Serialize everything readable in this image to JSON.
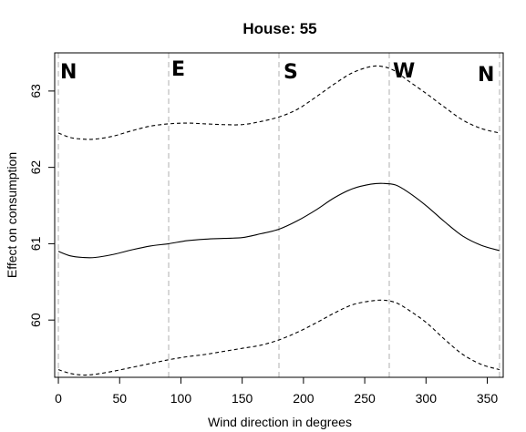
{
  "chart_data": {
    "type": "line",
    "title": "House:  55",
    "xlabel": "Wind direction in degrees",
    "ylabel": "Effect on consumption",
    "xlim": [
      -3,
      363
    ],
    "ylim": [
      59.25,
      63.5
    ],
    "x_ticks": [
      0,
      50,
      100,
      150,
      200,
      250,
      300,
      350
    ],
    "y_ticks": [
      60,
      61,
      62,
      63
    ],
    "grid": "vertical dashed lines at 0, 90, 180, 270, 360",
    "direction_markers": [
      {
        "label": "N",
        "x": 0
      },
      {
        "label": "E",
        "x": 90
      },
      {
        "label": "S",
        "x": 180
      },
      {
        "label": "W",
        "x": 270
      },
      {
        "label": "N",
        "x": 360
      }
    ],
    "series": [
      {
        "style": "dashed",
        "x": [
          0,
          10,
          20,
          30,
          45,
          60,
          75,
          90,
          105,
          120,
          135,
          150,
          165,
          180,
          195,
          210,
          225,
          240,
          255,
          265,
          275,
          285,
          300,
          315,
          330,
          345,
          360
        ],
        "y": [
          62.45,
          62.39,
          62.37,
          62.37,
          62.41,
          62.48,
          62.54,
          62.57,
          62.58,
          62.57,
          62.56,
          62.56,
          62.6,
          62.66,
          62.76,
          62.92,
          63.09,
          63.24,
          63.32,
          63.32,
          63.26,
          63.14,
          62.97,
          62.79,
          62.62,
          62.51,
          62.45
        ]
      },
      {
        "style": "solid",
        "x": [
          0,
          10,
          20,
          30,
          45,
          60,
          75,
          90,
          105,
          120,
          135,
          150,
          165,
          180,
          195,
          210,
          225,
          240,
          255,
          265,
          275,
          285,
          300,
          315,
          330,
          345,
          360
        ],
        "y": [
          60.9,
          60.84,
          60.82,
          60.82,
          60.86,
          60.92,
          60.97,
          61.0,
          61.04,
          61.06,
          61.07,
          61.08,
          61.13,
          61.19,
          61.3,
          61.44,
          61.6,
          61.72,
          61.78,
          61.79,
          61.77,
          61.68,
          61.5,
          61.29,
          61.1,
          60.98,
          60.91
        ]
      },
      {
        "style": "dashed",
        "x": [
          0,
          10,
          20,
          30,
          45,
          60,
          75,
          90,
          105,
          120,
          135,
          150,
          165,
          180,
          195,
          210,
          225,
          240,
          255,
          265,
          275,
          285,
          300,
          315,
          330,
          345,
          360
        ],
        "y": [
          59.35,
          59.3,
          59.28,
          59.29,
          59.33,
          59.38,
          59.43,
          59.48,
          59.52,
          59.55,
          59.59,
          59.63,
          59.67,
          59.74,
          59.84,
          59.96,
          60.09,
          60.2,
          60.25,
          60.26,
          60.23,
          60.14,
          59.97,
          59.75,
          59.55,
          59.42,
          59.35
        ]
      }
    ]
  }
}
